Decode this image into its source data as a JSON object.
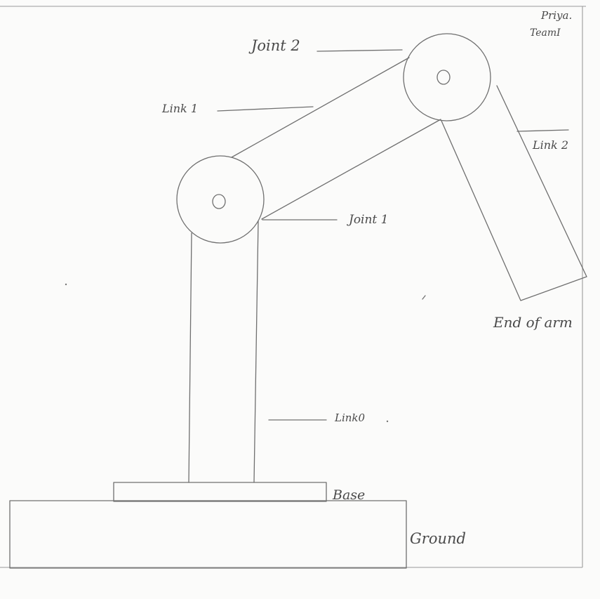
{
  "author": {
    "name": "Priya.",
    "team": "TeamI"
  },
  "labels": {
    "joint_2": "Joint 2",
    "link_1": "Link 1",
    "link_2": "Link 2",
    "joint_1": "Joint 1",
    "end_of_arm": "End of arm",
    "link_0": "Link0",
    "base": "Base",
    "ground": "Ground"
  },
  "colors": {
    "ink": "#6f6f6f",
    "paper": "#fbfbfa"
  }
}
